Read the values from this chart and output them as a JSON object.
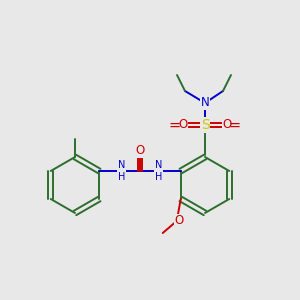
{
  "bg_color": "#e8e8e8",
  "bond_color": "#2d6e2d",
  "atom_colors": {
    "N": "#0000cc",
    "O": "#cc0000",
    "S": "#cccc00",
    "C_ring": "#2d6e2d"
  },
  "font_size": 8.5,
  "lw": 1.4
}
